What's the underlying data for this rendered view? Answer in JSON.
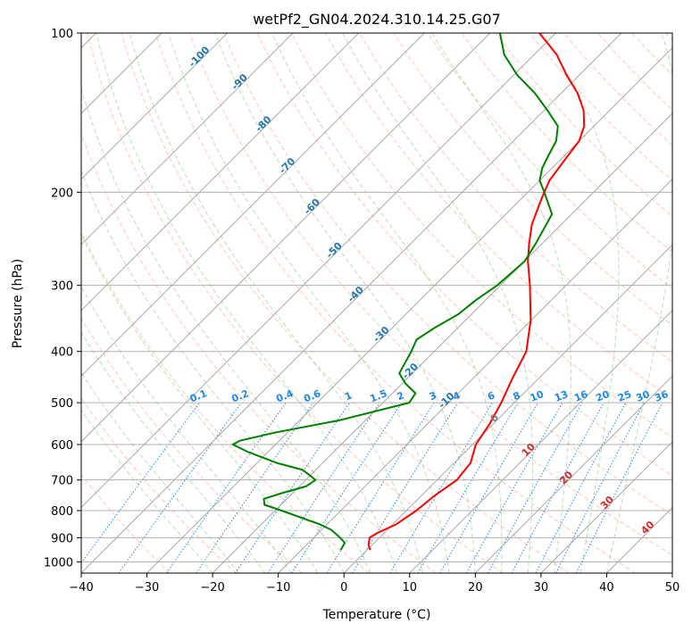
{
  "chart_data": {
    "type": "line",
    "subtype": "skew-t log-p sounding",
    "title": "wetPf2_GN04.2024.310.14.25.G07",
    "xlabel": "Temperature (°C)",
    "ylabel": "Pressure (hPa)",
    "xlim": [
      -40,
      50
    ],
    "ylim": [
      1050,
      100
    ],
    "y_scale": "log",
    "grid": true,
    "x_ticks": [
      "−40",
      "−30",
      "−20",
      "−10",
      "0",
      "10",
      "20",
      "30",
      "40",
      "50"
    ],
    "y_ticks": [
      "100",
      "200",
      "300",
      "400",
      "500",
      "600",
      "700",
      "800",
      "900",
      "1000"
    ],
    "y_tick_values": [
      100,
      200,
      300,
      400,
      500,
      600,
      700,
      800,
      900,
      1000
    ],
    "colors": {
      "temperature": "#ff0000",
      "dewpoint": "#008000",
      "isotherm": "#a9a9a9",
      "dry_adiabat": "#ff9977",
      "moist_adiabat": "#88cc88",
      "mixing_ratio": "#1e88e5",
      "isotherm_label": "#1f77b4"
    },
    "series": [
      {
        "kind": "temperature",
        "pressure": [
          950,
          930,
          900,
          880,
          850,
          800,
          750,
          700,
          650,
          600,
          550,
          500,
          450,
          400,
          350,
          300,
          270,
          250,
          230,
          210,
          200,
          190,
          180,
          170,
          160,
          150,
          140,
          130,
          120,
          110,
          100
        ],
        "temperature": [
          0.5,
          -0.5,
          -1.5,
          -1.0,
          0.5,
          1.5,
          2.0,
          3.0,
          2.5,
          0.5,
          -0.5,
          -2.0,
          -4.0,
          -6.0,
          -10.0,
          -15.5,
          -19.5,
          -22.0,
          -24.5,
          -26.5,
          -27.5,
          -28.5,
          -29.0,
          -29.5,
          -30.0,
          -31.5,
          -34.0,
          -37.5,
          -42.0,
          -46.5,
          -52.5
        ]
      },
      {
        "kind": "dewpoint",
        "pressure": [
          950,
          920,
          900,
          870,
          850,
          800,
          780,
          760,
          740,
          720,
          700,
          670,
          650,
          620,
          600,
          590,
          570,
          540,
          500,
          480,
          460,
          440,
          400,
          380,
          360,
          340,
          320,
          300,
          270,
          250,
          220,
          200,
          190,
          180,
          170,
          160,
          150,
          140,
          130,
          120,
          110,
          100
        ],
        "dewpoint": [
          -4.0,
          -4.5,
          -6.0,
          -8.5,
          -11.0,
          -19.0,
          -22.5,
          -23.5,
          -21.5,
          -19.0,
          -18.5,
          -22.0,
          -27.0,
          -33.0,
          -36.5,
          -36.0,
          -32.0,
          -24.0,
          -16.0,
          -16.5,
          -19.5,
          -22.0,
          -23.5,
          -24.5,
          -23.5,
          -22.0,
          -21.5,
          -20.5,
          -20.0,
          -21.0,
          -23.0,
          -27.5,
          -30.0,
          -31.5,
          -32.5,
          -33.5,
          -35.5,
          -39.5,
          -44.0,
          -49.5,
          -54.5,
          -58.5
        ]
      }
    ],
    "isotherm_labels": [
      "-100",
      "-90",
      "-80",
      "-70",
      "-60",
      "-50",
      "-40",
      "-30",
      "-20",
      "-10"
    ],
    "isotherm_label_values": [
      -100,
      -90,
      -80,
      -70,
      -60,
      -50,
      -40,
      -30,
      -20,
      -10
    ],
    "mixing_ratio_labels": [
      "0.1",
      "0.2",
      "0.4",
      "0.6",
      "1",
      "1.5",
      "2",
      "3",
      "4",
      "6",
      "8",
      "10",
      "13",
      "16",
      "20",
      "25",
      "30",
      "36"
    ],
    "mixing_ratio_values": [
      0.1,
      0.2,
      0.4,
      0.6,
      1,
      1.5,
      2,
      3,
      4,
      6,
      8,
      10,
      13,
      16,
      20,
      25,
      30,
      36
    ],
    "warm_isotherm_labels": [
      "0",
      "10",
      "20",
      "30",
      "40"
    ],
    "warm_isotherm_label_values": [
      0,
      10,
      20,
      30,
      40
    ],
    "warm_isotherm_colors": [
      "#808080",
      "#d62728",
      "#d62728",
      "#d62728",
      "#d62728"
    ]
  }
}
